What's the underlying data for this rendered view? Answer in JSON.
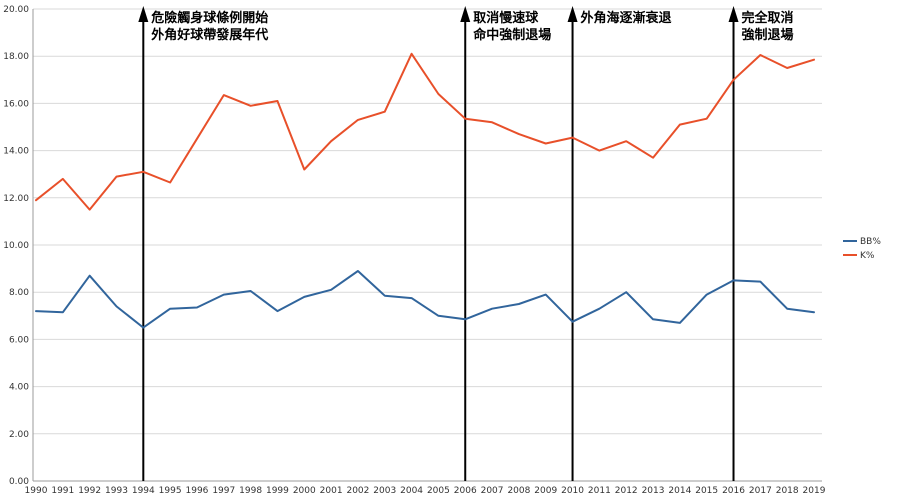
{
  "chart_data": {
    "type": "line",
    "x": [
      1990,
      1991,
      1992,
      1993,
      1994,
      1995,
      1996,
      1997,
      1998,
      1999,
      2000,
      2001,
      2002,
      2003,
      2004,
      2005,
      2006,
      2007,
      2008,
      2009,
      2010,
      2011,
      2012,
      2013,
      2014,
      2015,
      2016,
      2017,
      2018,
      2019
    ],
    "series": [
      {
        "name": "BB%",
        "color": "#31659c",
        "values": [
          7.2,
          7.15,
          8.7,
          7.4,
          6.5,
          7.3,
          7.35,
          7.9,
          8.05,
          7.2,
          7.8,
          8.1,
          8.9,
          7.85,
          7.75,
          7.0,
          6.85,
          7.3,
          7.5,
          7.9,
          6.75,
          7.3,
          8.0,
          6.85,
          6.7,
          7.9,
          8.5,
          8.45,
          7.3,
          7.15
        ]
      },
      {
        "name": "K%",
        "color": "#e8502a",
        "values": [
          11.9,
          12.8,
          11.5,
          12.9,
          13.1,
          12.65,
          14.5,
          16.35,
          15.9,
          16.1,
          13.2,
          14.4,
          15.3,
          15.65,
          18.1,
          16.4,
          15.35,
          15.2,
          14.7,
          14.3,
          14.55,
          14.0,
          14.4,
          13.7,
          15.1,
          15.35,
          17.0,
          18.05,
          17.5,
          17.85
        ]
      }
    ],
    "title": "",
    "xlabel": "",
    "ylabel": "",
    "ylim": [
      0,
      20
    ],
    "ytick_step": 2,
    "ytick_decimals": 2,
    "grid": true,
    "grid_color": "#d9d9d9",
    "axis_color": "#9b9b9b",
    "legend_position": "right",
    "annotations": [
      {
        "year": 1994,
        "lines": [
          "危險觸身球條例開始",
          "外角好球帶發展年代"
        ]
      },
      {
        "year": 2006,
        "lines": [
          "取消慢速球",
          "命中強制退場"
        ]
      },
      {
        "year": 2010,
        "lines": [
          "外角海逐漸衰退"
        ]
      },
      {
        "year": 2016,
        "lines": [
          "完全取消",
          "強制退場"
        ]
      }
    ],
    "annotation_line_color": "#000000"
  },
  "legend": {
    "items": [
      {
        "label": "BB%",
        "color": "#31659c"
      },
      {
        "label": "K%",
        "color": "#e8502a"
      }
    ]
  }
}
